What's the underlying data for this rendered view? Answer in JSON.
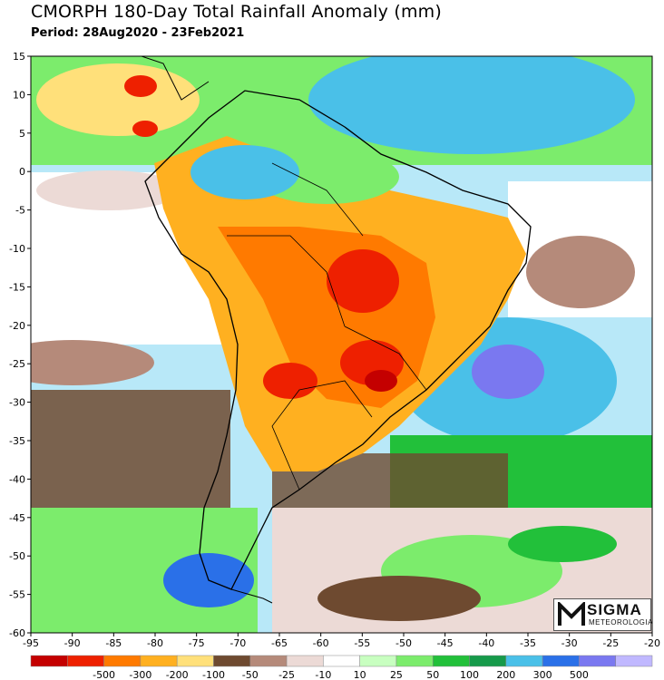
{
  "header": {
    "title": "CMORPH 180-Day Total Rainfall Anomaly (mm)",
    "period": "Period: 28Aug2020 - 23Feb2021"
  },
  "map": {
    "x_ticks": [
      "-95",
      "-90",
      "-85",
      "-80",
      "-75",
      "-70",
      "-65",
      "-60",
      "-55",
      "-50",
      "-45",
      "-40",
      "-35",
      "-30",
      "-25",
      "-20"
    ],
    "y_ticks": [
      "15",
      "10",
      "5",
      "0",
      "-5",
      "-10",
      "-15",
      "-20",
      "-25",
      "-30",
      "-35",
      "-40",
      "-45",
      "-50",
      "-55",
      "-60"
    ],
    "lon_range": [
      -95,
      -20
    ],
    "lat_range": [
      -60,
      15
    ]
  },
  "legend": {
    "labels": [
      "-500",
      "-300",
      "-200",
      "-100",
      "-50",
      "-25",
      "-10",
      "10",
      "25",
      "50",
      "100",
      "200",
      "300",
      "500"
    ],
    "colors": [
      "#c40000",
      "#ee2000",
      "#ff7a00",
      "#ffb020",
      "#ffe07a",
      "#6e4a30",
      "#b58a7a",
      "#ecdad6",
      "#ffffff",
      "#c8ffc0",
      "#7cec6c",
      "#22c03a",
      "#169a4a",
      "#4ac0e8",
      "#2a70e8",
      "#7a78f0",
      "#c0b8ff"
    ]
  },
  "logo": {
    "name": "SIGMA",
    "subtitle": "METEOROLOGIA"
  }
}
